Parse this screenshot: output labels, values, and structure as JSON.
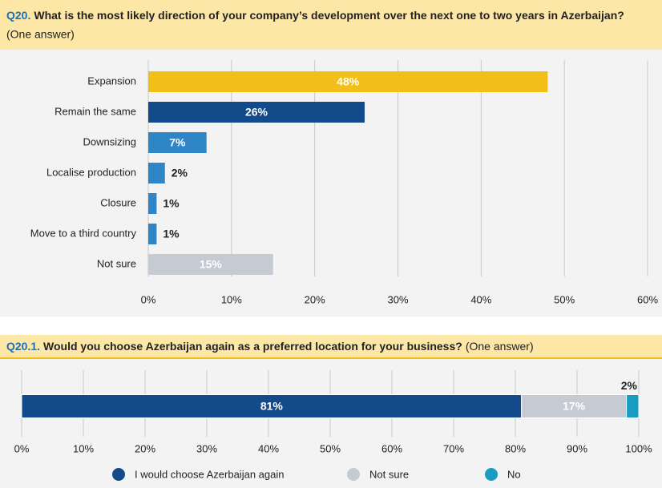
{
  "chart_data": [
    {
      "type": "bar",
      "orientation": "horizontal",
      "label": "Q20.",
      "title": "What is the most likely direction of your company’s development over the next one to two years in Azerbaijan?",
      "subtitle": "(One answer)",
      "categories": [
        "Expansion",
        "Remain the same",
        "Downsizing",
        "Localise production",
        "Closure",
        "Move to a third country",
        "Not sure"
      ],
      "values": [
        48,
        26,
        7,
        2,
        1,
        1,
        15
      ],
      "value_labels": [
        "48%",
        "26%",
        "7%",
        "2%",
        "1%",
        "1%",
        "15%"
      ],
      "colors": [
        "#f2bf1a",
        "#134b8a",
        "#2e86c8",
        "#2e86c8",
        "#2e86c8",
        "#2e86c8",
        "#c5cad3"
      ],
      "xlim": [
        0,
        60
      ],
      "xticks": [
        {
          "value": 0,
          "label": "0%"
        },
        {
          "value": 10,
          "label": "10%"
        },
        {
          "value": 20,
          "label": "20%"
        },
        {
          "value": 30,
          "label": "30%"
        },
        {
          "value": 40,
          "label": "40%"
        },
        {
          "value": 50,
          "label": "50%"
        },
        {
          "value": 60,
          "label": "60%"
        }
      ],
      "grid": true
    },
    {
      "type": "stacked_bar",
      "orientation": "horizontal",
      "label": "Q20.1.",
      "title": "Would you choose Azerbaijan again as a preferred location for your business?",
      "subtitle": "(One answer)",
      "series": [
        {
          "name": "I would choose Azerbaijan again",
          "color": "#134b8a",
          "values": [
            81
          ],
          "value_labels": [
            "81%"
          ]
        },
        {
          "name": "Not sure",
          "color": "#c5cad3",
          "values": [
            17
          ],
          "value_labels": [
            "17%"
          ]
        },
        {
          "name": "No",
          "color": "#1a9bc0",
          "values": [
            2
          ],
          "value_labels": [
            "2%"
          ]
        }
      ],
      "xlim": [
        0,
        100
      ],
      "xticks": [
        {
          "value": 0,
          "label": "0%"
        },
        {
          "value": 10,
          "label": "10%"
        },
        {
          "value": 20,
          "label": "20%"
        },
        {
          "value": 30,
          "label": "30%"
        },
        {
          "value": 40,
          "label": "40%"
        },
        {
          "value": 50,
          "label": "50%"
        },
        {
          "value": 60,
          "label": "60%"
        },
        {
          "value": 70,
          "label": "70%"
        },
        {
          "value": 80,
          "label": "80%"
        },
        {
          "value": 90,
          "label": "90%"
        },
        {
          "value": 100,
          "label": "100%"
        }
      ],
      "grid": true,
      "legend": "bottom"
    }
  ]
}
